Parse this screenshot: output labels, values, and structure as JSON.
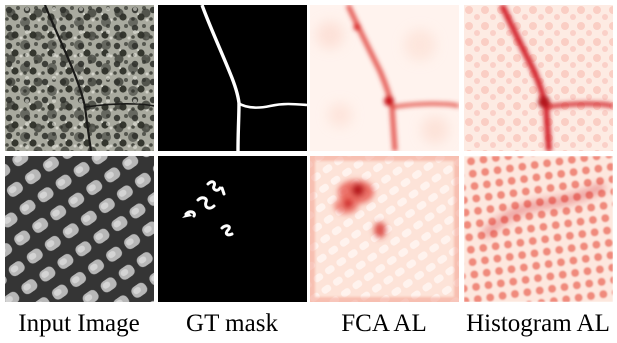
{
  "columns": [
    {
      "caption": "Input Image"
    },
    {
      "caption": "GT mask"
    },
    {
      "caption": "FCA AL"
    },
    {
      "caption": "Histogram AL"
    }
  ],
  "colors": {
    "background": "#ffffff",
    "mask_bg": "#000000",
    "mask_fg": "#ffffff",
    "heat_low": "#fff1ec",
    "heat_high": "#c8161b",
    "stone_light": "#b9bab0",
    "stone_dark": "#3b3d37",
    "mesh_light": "#d0d0d0",
    "mesh_dark": "#3a3a3a"
  }
}
